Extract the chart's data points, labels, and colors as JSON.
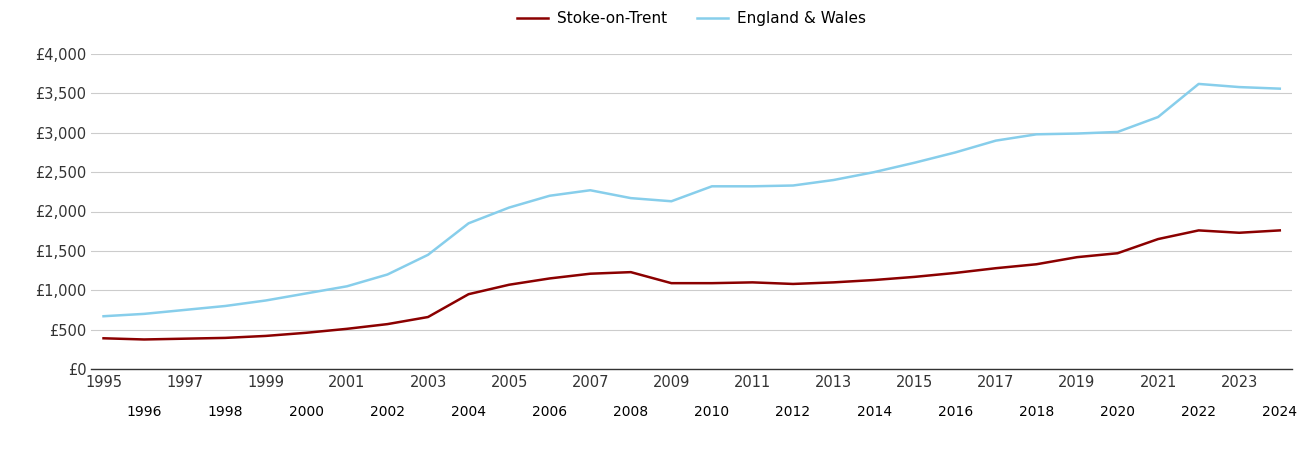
{
  "stoke_color": "#8B0000",
  "england_color": "#87CEEB",
  "background_color": "#ffffff",
  "grid_color": "#cccccc",
  "years": [
    1995,
    1996,
    1997,
    1998,
    1999,
    2000,
    2001,
    2002,
    2003,
    2004,
    2005,
    2006,
    2007,
    2008,
    2009,
    2010,
    2011,
    2012,
    2013,
    2014,
    2015,
    2016,
    2017,
    2018,
    2019,
    2020,
    2021,
    2022,
    2023,
    2024
  ],
  "stoke_values": [
    390,
    375,
    385,
    395,
    420,
    460,
    510,
    570,
    660,
    950,
    1070,
    1150,
    1210,
    1230,
    1090,
    1090,
    1100,
    1080,
    1100,
    1130,
    1170,
    1220,
    1280,
    1330,
    1420,
    1470,
    1650,
    1760,
    1730,
    1760
  ],
  "england_values": [
    670,
    700,
    750,
    800,
    870,
    960,
    1050,
    1200,
    1450,
    1850,
    2050,
    2200,
    2270,
    2170,
    2130,
    2320,
    2320,
    2330,
    2400,
    2500,
    2620,
    2750,
    2900,
    2980,
    2990,
    3010,
    3200,
    3620,
    3580,
    3560
  ],
  "ylim": [
    0,
    4000
  ],
  "yticks": [
    0,
    500,
    1000,
    1500,
    2000,
    2500,
    3000,
    3500,
    4000
  ],
  "ytick_labels": [
    "£0",
    "£500",
    "£1,000",
    "£1,500",
    "£2,000",
    "£2,500",
    "£3,000",
    "£3,500",
    "£4,000"
  ],
  "legend_stoke": "Stoke-on-Trent",
  "legend_england": "England & Wales",
  "line_width": 1.8
}
